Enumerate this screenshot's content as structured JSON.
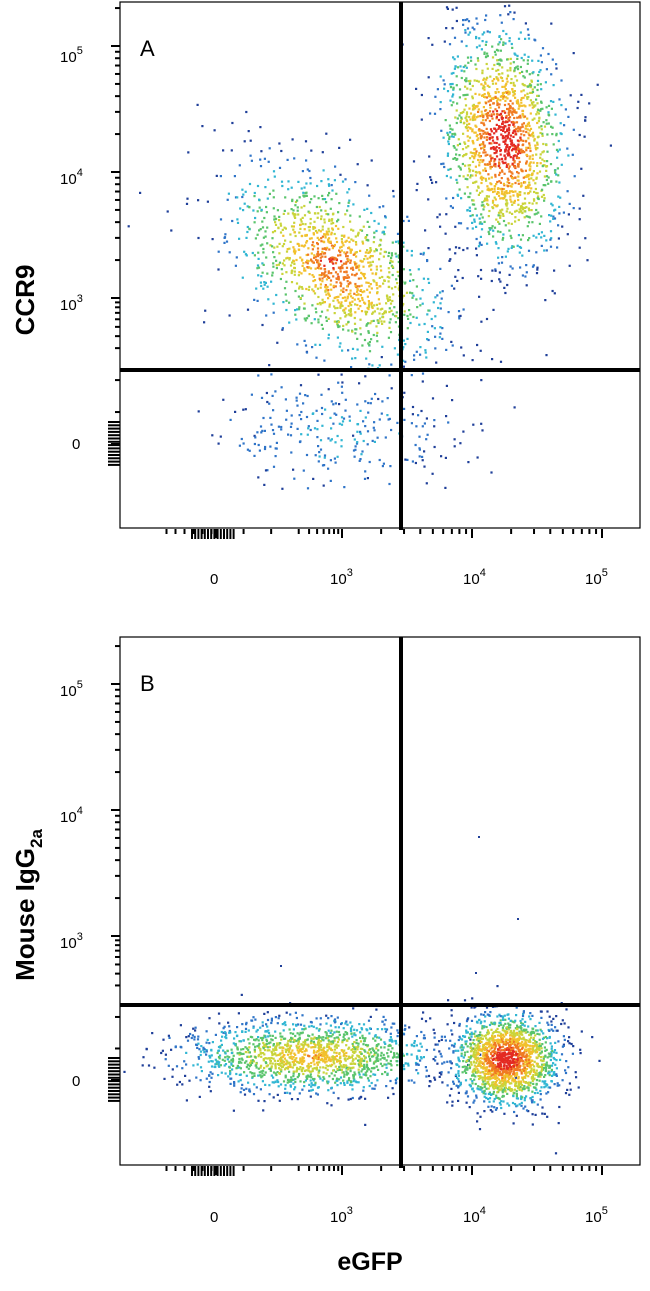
{
  "chart_data": [
    {
      "type": "scatter",
      "panel_label": "A",
      "xlabel": "",
      "ylabel": "CCR9",
      "x_scale": "biexponential",
      "y_scale": "biexponential",
      "x_ticks": [
        {
          "base": "0",
          "exp": ""
        },
        {
          "base": "10",
          "exp": "3"
        },
        {
          "base": "10",
          "exp": "4"
        },
        {
          "base": "10",
          "exp": "5"
        }
      ],
      "y_ticks": [
        {
          "base": "10",
          "exp": "5"
        },
        {
          "base": "10",
          "exp": "4"
        },
        {
          "base": "10",
          "exp": "3"
        },
        {
          "base": "0",
          "exp": ""
        }
      ],
      "quadrant_gate": {
        "x": 2800,
        "y": 330
      },
      "clusters": [
        {
          "x_center": 800,
          "y_center": 1800,
          "spread": "wide",
          "count": 1300
        },
        {
          "x_center": 17000,
          "y_center": 18000,
          "spread": "wide",
          "count": 1600
        },
        {
          "x_center": 900,
          "y_center": 40,
          "spread": "wide",
          "count": 260
        }
      ],
      "color_scale": [
        "#1f3f99",
        "#2f74c8",
        "#31b6d3",
        "#59c46b",
        "#c9d43a",
        "#f2c02c",
        "#f07a22",
        "#e32a22"
      ]
    },
    {
      "type": "scatter",
      "panel_label": "B",
      "xlabel": "eGFP",
      "ylabel_main": "Mouse IgG",
      "ylabel_sub": "2a",
      "x_scale": "biexponential",
      "y_scale": "biexponential",
      "x_ticks": [
        {
          "base": "0",
          "exp": ""
        },
        {
          "base": "10",
          "exp": "3"
        },
        {
          "base": "10",
          "exp": "4"
        },
        {
          "base": "10",
          "exp": "5"
        }
      ],
      "y_ticks": [
        {
          "base": "10",
          "exp": "5"
        },
        {
          "base": "10",
          "exp": "4"
        },
        {
          "base": "10",
          "exp": "3"
        },
        {
          "base": "0",
          "exp": ""
        }
      ],
      "quadrant_gate": {
        "x": 2800,
        "y": 330
      },
      "clusters": [
        {
          "x_center": 400,
          "y_center": 60,
          "spread": "band",
          "count": 1500
        },
        {
          "x_center": 18000,
          "y_center": 50,
          "spread": "tight",
          "count": 1700
        }
      ],
      "color_scale": [
        "#1f3f99",
        "#2f74c8",
        "#31b6d3",
        "#59c46b",
        "#c9d43a",
        "#f2c02c",
        "#f07a22",
        "#e32a22"
      ]
    }
  ]
}
